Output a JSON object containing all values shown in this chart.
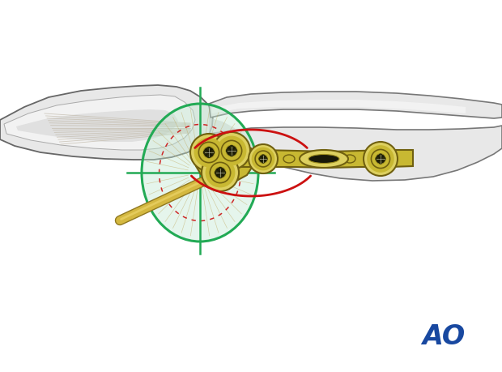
{
  "bg_color": "#ffffff",
  "bone_outer_color": "#e8e8e8",
  "bone_outer_edge": "#888888",
  "bone_inner_color": "#d8d8d8",
  "bone_cortex_color": "#f0f0f0",
  "tendon_color": "#c8c0b0",
  "plate_gold": "#c8b832",
  "plate_gold_light": "#ddd060",
  "plate_gold_dark": "#a09020",
  "plate_outline": "#706010",
  "screw_hole_dark": "#222210",
  "green_main": "#22aa55",
  "green_fill": "#c0e8d0",
  "green_fill_alpha": 0.4,
  "red_line": "#cc1111",
  "kwire_gold": "#d4b840",
  "kwire_dark": "#907820",
  "ao_color": "#1848a0",
  "shadow_color": "#cccccc"
}
